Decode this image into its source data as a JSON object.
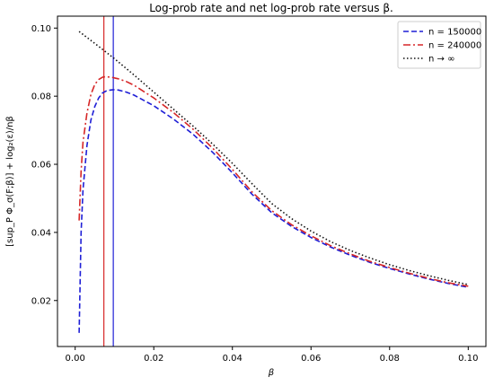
{
  "chart_data": {
    "type": "line",
    "title": "Log-prob rate and net log-prob rate versus β.",
    "xlabel": "β",
    "ylabel": "[sup_P Φ_σ(F;β)] + log₂(ε)/nβ",
    "xlim": [
      -0.0045,
      0.1045
    ],
    "ylim": [
      0.0065,
      0.1035
    ],
    "x_ticks": [
      "0.00",
      "0.02",
      "0.04",
      "0.06",
      "0.08",
      "0.10"
    ],
    "y_ticks": [
      "0.02",
      "0.04",
      "0.06",
      "0.08",
      "0.10"
    ],
    "grid": false,
    "legend_position": "top-right",
    "series": [
      {
        "name": "n = 150000",
        "color": "#1f1fd6",
        "style": "dashed",
        "points": [
          [
            0.001,
            0.0105
          ],
          [
            0.0015,
            0.04
          ],
          [
            0.002,
            0.0525
          ],
          [
            0.003,
            0.0655
          ],
          [
            0.004,
            0.073
          ],
          [
            0.005,
            0.077
          ],
          [
            0.006,
            0.0795
          ],
          [
            0.007,
            0.081
          ],
          [
            0.008,
            0.0816
          ],
          [
            0.009,
            0.0818
          ],
          [
            0.0097,
            0.0819
          ],
          [
            0.011,
            0.0818
          ],
          [
            0.013,
            0.0812
          ],
          [
            0.015,
            0.0803
          ],
          [
            0.02,
            0.0772
          ],
          [
            0.025,
            0.0733
          ],
          [
            0.03,
            0.0688
          ],
          [
            0.035,
            0.0635
          ],
          [
            0.04,
            0.0575
          ],
          [
            0.045,
            0.0512
          ],
          [
            0.05,
            0.0458
          ],
          [
            0.055,
            0.0418
          ],
          [
            0.06,
            0.0385
          ],
          [
            0.065,
            0.0357
          ],
          [
            0.07,
            0.0333
          ],
          [
            0.075,
            0.0312
          ],
          [
            0.08,
            0.0294
          ],
          [
            0.085,
            0.0278
          ],
          [
            0.09,
            0.0263
          ],
          [
            0.095,
            0.025
          ],
          [
            0.1,
            0.0239
          ]
        ]
      },
      {
        "name": "n = 240000",
        "color": "#d62728",
        "style": "dashdot",
        "points": [
          [
            0.001,
            0.0435
          ],
          [
            0.0015,
            0.058
          ],
          [
            0.002,
            0.0665
          ],
          [
            0.003,
            0.075
          ],
          [
            0.004,
            0.0805
          ],
          [
            0.005,
            0.0835
          ],
          [
            0.006,
            0.0849
          ],
          [
            0.007,
            0.0856
          ],
          [
            0.0077,
            0.0857
          ],
          [
            0.009,
            0.0856
          ],
          [
            0.011,
            0.0851
          ],
          [
            0.013,
            0.0843
          ],
          [
            0.015,
            0.0832
          ],
          [
            0.02,
            0.0795
          ],
          [
            0.025,
            0.0752
          ],
          [
            0.03,
            0.0703
          ],
          [
            0.035,
            0.0647
          ],
          [
            0.04,
            0.0585
          ],
          [
            0.045,
            0.0519
          ],
          [
            0.05,
            0.0464
          ],
          [
            0.055,
            0.0423
          ],
          [
            0.06,
            0.039
          ],
          [
            0.065,
            0.0361
          ],
          [
            0.07,
            0.0337
          ],
          [
            0.075,
            0.0315
          ],
          [
            0.08,
            0.0297
          ],
          [
            0.085,
            0.028
          ],
          [
            0.09,
            0.0265
          ],
          [
            0.095,
            0.0252
          ],
          [
            0.1,
            0.0242
          ]
        ]
      },
      {
        "name": "n → ∞",
        "color": "#111111",
        "style": "dotted",
        "points": [
          [
            0.001,
            0.099
          ],
          [
            0.005,
            0.0955
          ],
          [
            0.01,
            0.091
          ],
          [
            0.015,
            0.0862
          ],
          [
            0.02,
            0.0812
          ],
          [
            0.025,
            0.0762
          ],
          [
            0.03,
            0.0712
          ],
          [
            0.035,
            0.0659
          ],
          [
            0.04,
            0.0603
          ],
          [
            0.045,
            0.0543
          ],
          [
            0.05,
            0.0485
          ],
          [
            0.055,
            0.0441
          ],
          [
            0.06,
            0.0404
          ],
          [
            0.065,
            0.0373
          ],
          [
            0.07,
            0.0347
          ],
          [
            0.075,
            0.0325
          ],
          [
            0.08,
            0.0305
          ],
          [
            0.085,
            0.0288
          ],
          [
            0.09,
            0.0273
          ],
          [
            0.095,
            0.0259
          ],
          [
            0.1,
            0.0247
          ]
        ]
      }
    ],
    "vertical_lines": [
      {
        "x": 0.0073,
        "color": "#d62728"
      },
      {
        "x": 0.0097,
        "color": "#1f1fd6"
      }
    ]
  }
}
